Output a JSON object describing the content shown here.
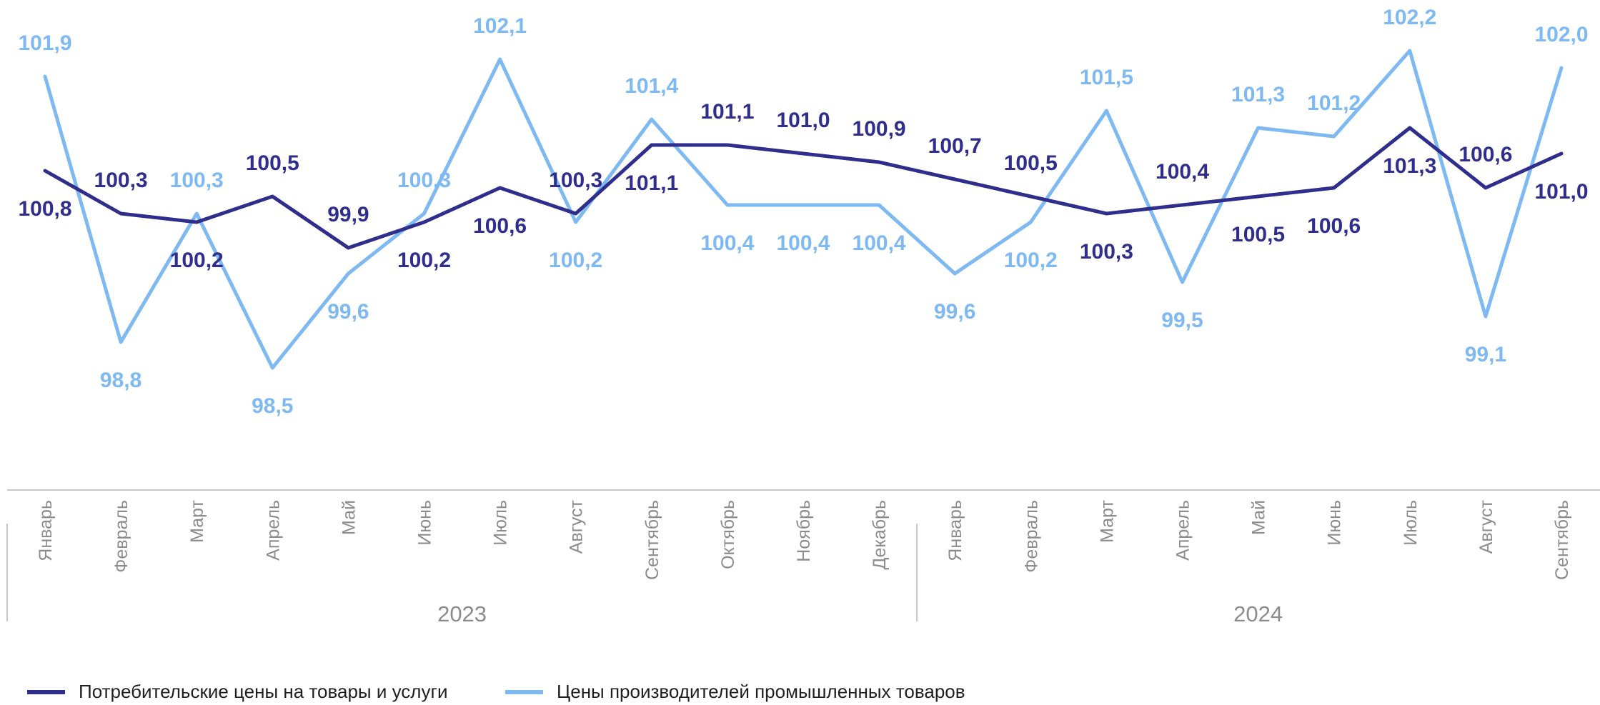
{
  "chart_data": {
    "type": "line",
    "categories": [
      "Январь",
      "Февраль",
      "Март",
      "Апрель",
      "Май",
      "Июнь",
      "Июль",
      "Август",
      "Сентябрь",
      "Октябрь",
      "Ноябрь",
      "Декабрь",
      "Январь",
      "Февраль",
      "Март",
      "Апрель",
      "Май",
      "Июнь",
      "Июль",
      "Август",
      "Сентябрь"
    ],
    "groups": [
      {
        "label": "2023",
        "count": 12
      },
      {
        "label": "2024",
        "count": 9
      }
    ],
    "series": [
      {
        "name": "Потребительские цены на товары и услуги",
        "color": "#302e8c",
        "values": [
          100.8,
          100.3,
          100.2,
          100.5,
          99.9,
          100.2,
          100.6,
          100.3,
          101.1,
          101.1,
          101.0,
          100.9,
          100.7,
          100.5,
          100.3,
          100.4,
          100.5,
          100.6,
          101.3,
          100.6,
          101.0
        ],
        "labels": [
          "100,8",
          "100,3",
          "100,2",
          "100,5",
          "99,9",
          "100,2",
          "100,6",
          "100,3",
          "101,1",
          "101,1",
          "101,0",
          "100,9",
          "100,7",
          "100,5",
          "100,3",
          "100,4",
          "100,5",
          "100,6",
          "101,3",
          "100,6",
          "101,0"
        ]
      },
      {
        "name": "Цены производителей промышленных товаров",
        "color": "#7eb9f2",
        "values": [
          101.9,
          98.8,
          100.3,
          98.5,
          99.6,
          100.3,
          102.1,
          100.2,
          101.4,
          100.4,
          100.4,
          100.4,
          99.6,
          100.2,
          101.5,
          99.5,
          101.3,
          101.2,
          102.2,
          99.1,
          102.0
        ],
        "labels": [
          "101,9",
          "98,8",
          "100,3",
          "98,5",
          "99,6",
          "100,3",
          "102,1",
          "100,2",
          "101,4",
          "100,4",
          "100,4",
          "100,4",
          "99,6",
          "100,2",
          "101,5",
          "99,5",
          "101,3",
          "101,2",
          "102,2",
          "99,1",
          "102,0"
        ]
      }
    ],
    "legend_position": "bottom",
    "grid": false
  }
}
